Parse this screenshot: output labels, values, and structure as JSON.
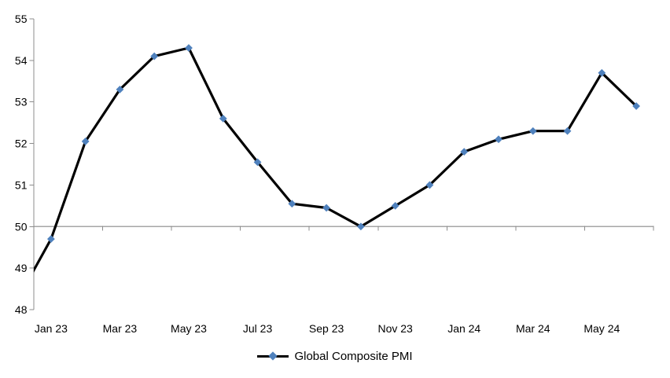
{
  "chart_data": {
    "type": "line",
    "title": "",
    "xlabel": "",
    "ylabel": "",
    "categories": [
      "Dec 22",
      "Jan 23",
      "Feb 23",
      "Mar 23",
      "Apr 23",
      "May 23",
      "Jun 23",
      "Jul 23",
      "Aug 23",
      "Sep 23",
      "Oct 23",
      "Nov 23",
      "Dec 23",
      "Jan 24",
      "Feb 24",
      "Mar 24",
      "Apr 24",
      "May 24",
      "Jun 24"
    ],
    "series": [
      {
        "name": "Global Composite PMI",
        "values": [
          48.2,
          49.7,
          52.05,
          53.3,
          54.1,
          54.3,
          52.6,
          51.55,
          50.55,
          50.45,
          50.0,
          50.5,
          51.0,
          51.8,
          52.1,
          52.3,
          52.3,
          53.7,
          52.9
        ],
        "marker": "diamond"
      }
    ],
    "first_category_clipped_at_left_edge": true,
    "ylim": [
      48,
      55
    ],
    "y_ticks": [
      48,
      49,
      50,
      51,
      52,
      53,
      54,
      55
    ],
    "x_tick_labels": [
      "Jan 23",
      "Mar 23",
      "May 23",
      "Jul 23",
      "Sep 23",
      "Nov 23",
      "Jan 24",
      "Mar 24",
      "May 24"
    ],
    "x_tick_label_interval": 2,
    "x_axis_cross_value": 50,
    "gridlines": false,
    "legend": {
      "position": "bottom-center",
      "entries": [
        "Global Composite PMI"
      ]
    }
  },
  "colors": {
    "background": "#FFFFFF",
    "y_axis": "#8C8C8C",
    "category_axis": "#A6A6A6",
    "tick": "#8C8C8C",
    "text": "#000000",
    "series_line": "#000000",
    "marker_fill": "#4F81BD"
  }
}
